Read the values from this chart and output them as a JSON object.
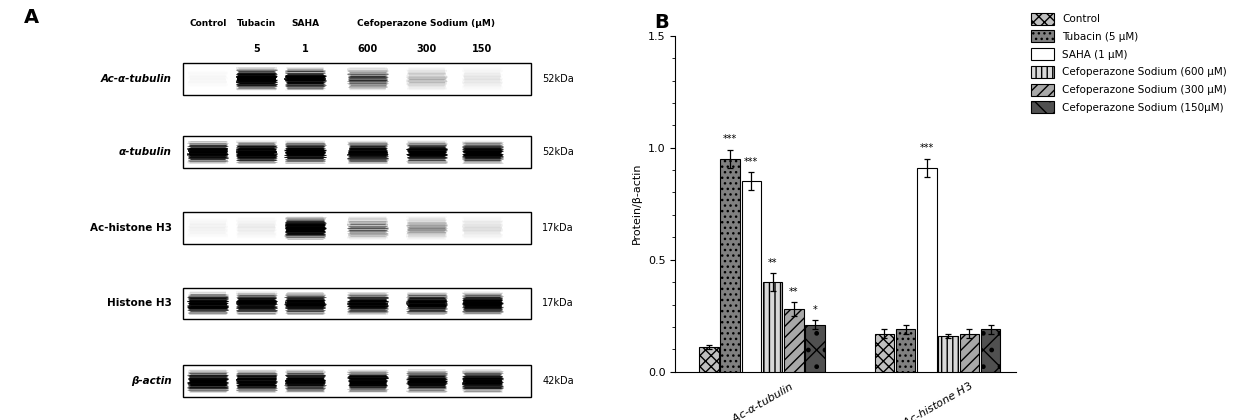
{
  "panel_A_label": "A",
  "panel_B_label": "B",
  "western_blot_labels": [
    "Ac-α-tubulin",
    "α-tubulin",
    "Ac-histone H3",
    "Histone H3",
    "β-actin"
  ],
  "western_blot_kda": [
    "52kDa",
    "52kDa",
    "17kDa",
    "17kDa",
    "42kDa"
  ],
  "bar_groups": [
    "Ac-α-tubulin",
    "Ac-histone H3"
  ],
  "series_labels": [
    "Control",
    "Tubacin (5 μM)",
    "SAHA (1 μM)",
    "Cefoperazone Sodium (600 μM)",
    "Cefoperazone Sodium (300 μM)",
    "Cefoperazone Sodium (150μM)"
  ],
  "bar_values": {
    "Ac-α-tubulin": [
      0.11,
      0.95,
      0.85,
      0.4,
      0.28,
      0.21
    ],
    "Ac-histone H3": [
      0.17,
      0.19,
      0.91,
      0.16,
      0.17,
      0.19
    ]
  },
  "bar_errors": {
    "Ac-α-tubulin": [
      0.01,
      0.04,
      0.04,
      0.04,
      0.03,
      0.02
    ],
    "Ac-histone H3": [
      0.02,
      0.02,
      0.04,
      0.01,
      0.02,
      0.02
    ]
  },
  "significance_labels": {
    "Ac-α-tubulin": [
      "",
      "***",
      "***",
      "**",
      "**",
      "*"
    ],
    "Ac-histone H3": [
      "",
      "",
      "***",
      "",
      "",
      ""
    ]
  },
  "ylabel": "Protein/β-actin",
  "ylim": [
    0.0,
    1.5
  ],
  "yticks": [
    0.0,
    0.5,
    1.0,
    1.5
  ],
  "background_color": "#ffffff",
  "blot_intensities": {
    "Ac-α-tubulin": [
      0.04,
      0.95,
      0.88,
      0.5,
      0.22,
      0.1
    ],
    "α-tubulin": [
      0.9,
      0.92,
      0.9,
      0.88,
      0.88,
      0.88
    ],
    "Ac-histone H3": [
      0.06,
      0.08,
      0.95,
      0.4,
      0.3,
      0.12
    ],
    "Histone H3": [
      0.9,
      0.88,
      0.87,
      0.88,
      0.88,
      0.88
    ],
    "β-actin": [
      0.88,
      0.9,
      0.88,
      0.88,
      0.88,
      0.88
    ]
  }
}
